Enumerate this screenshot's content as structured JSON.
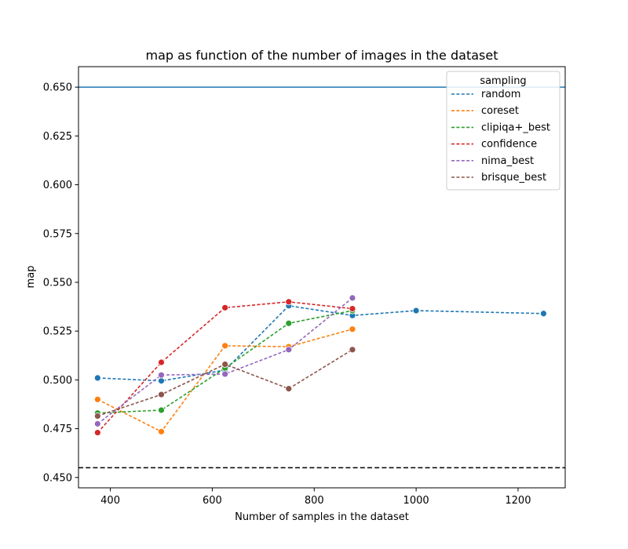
{
  "chart_data": {
    "type": "line",
    "title": "map as function of the number of images in the dataset",
    "xlabel": "Number of samples in the dataset",
    "ylabel": "map",
    "xlim": [
      337.5,
      1292.5
    ],
    "ylim": [
      0.4447,
      0.6605
    ],
    "xticks": [
      400,
      600,
      800,
      1000,
      1200
    ],
    "yticks": [
      0.45,
      0.475,
      0.5,
      0.525,
      0.55,
      0.575,
      0.6,
      0.625,
      0.65
    ],
    "ytick_labels": [
      "0.450",
      "0.475",
      "0.500",
      "0.525",
      "0.550",
      "0.575",
      "0.600",
      "0.625",
      "0.650"
    ],
    "xtick_labels": [
      "400",
      "600",
      "800",
      "1000",
      "1200"
    ],
    "legend": {
      "title": "sampling",
      "location": "upper right"
    },
    "hlines": [
      {
        "y": 0.65,
        "color": "#1f77b4",
        "style": "solid"
      },
      {
        "y": 0.455,
        "color": "#000000",
        "style": "dashed"
      }
    ],
    "series": [
      {
        "name": "random",
        "color": "#1f77b4",
        "x": [
          375,
          500,
          625,
          750,
          875,
          1000,
          1250
        ],
        "values": [
          0.501,
          0.4995,
          0.505,
          0.538,
          0.533,
          0.5355,
          0.534
        ]
      },
      {
        "name": "coreset",
        "color": "#ff7f0e",
        "x": [
          375,
          500,
          625,
          750,
          875
        ],
        "values": [
          0.49,
          0.4735,
          0.5175,
          0.517,
          0.526
        ]
      },
      {
        "name": "clipiqa+_best",
        "color": "#2ca02c",
        "x": [
          375,
          500,
          625,
          750,
          875
        ],
        "values": [
          0.483,
          0.4845,
          0.506,
          0.529,
          0.5355
        ]
      },
      {
        "name": "confidence",
        "color": "#d62728",
        "x": [
          375,
          500,
          625,
          750,
          875
        ],
        "values": [
          0.473,
          0.509,
          0.537,
          0.54,
          0.5365
        ]
      },
      {
        "name": "nima_best",
        "color": "#9467bd",
        "x": [
          375,
          500,
          625,
          750,
          875
        ],
        "values": [
          0.4775,
          0.5025,
          0.503,
          0.5155,
          0.542
        ]
      },
      {
        "name": "brisque_best",
        "color": "#8c564b",
        "x": [
          375,
          500,
          625,
          750,
          875
        ],
        "values": [
          0.4815,
          0.4925,
          0.508,
          0.4955,
          0.5155
        ]
      }
    ]
  }
}
